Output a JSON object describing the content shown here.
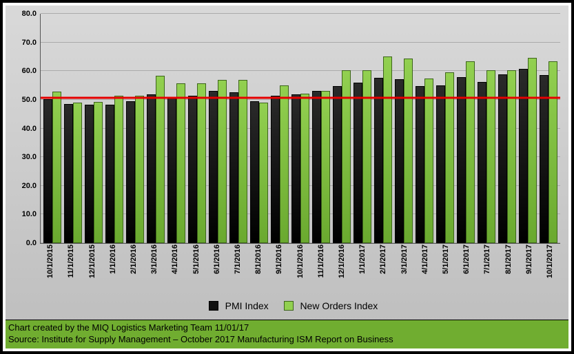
{
  "chart": {
    "type": "bar",
    "categories": [
      "10/1/2015",
      "11/1/2015",
      "12/1/2015",
      "1/1/2016",
      "2/1/2016",
      "3/1/2016",
      "4/1/2016",
      "5/1/2016",
      "6/1/2016",
      "7/1/2016",
      "8/1/2016",
      "9/1/2016",
      "10/1/2016",
      "11/1/2016",
      "12/1/2016",
      "1/1/2017",
      "2/1/2017",
      "3/1/2017",
      "4/1/2017",
      "5/1/2017",
      "6/1/2017",
      "7/1/2017",
      "8/1/2017",
      "9/1/2017",
      "10/1/2017"
    ],
    "series": [
      {
        "name": "PMI Index",
        "color": "#1a1a1a",
        "border": "#000000",
        "values": [
          50.1,
          48.6,
          48.2,
          48.2,
          49.5,
          51.8,
          50.8,
          51.3,
          53.2,
          52.6,
          49.4,
          51.5,
          51.9,
          53.2,
          54.7,
          56.0,
          57.7,
          57.2,
          54.8,
          54.9,
          57.8,
          56.3,
          58.8,
          60.8,
          58.7
        ]
      },
      {
        "name": "New Orders Index",
        "color": "#92d050",
        "border": "#3d641b",
        "values": [
          52.9,
          48.9,
          49.2,
          51.5,
          51.5,
          58.3,
          55.8,
          55.7,
          57.0,
          56.9,
          49.1,
          55.1,
          52.1,
          53.0,
          60.2,
          60.4,
          65.1,
          64.5,
          57.5,
          59.5,
          63.5,
          60.4,
          60.3,
          64.6,
          63.4
        ]
      }
    ],
    "ylim": [
      0,
      80
    ],
    "ytick_step": 10,
    "ytick_labels": [
      "0.0",
      "10.0",
      "20.0",
      "30.0",
      "40.0",
      "50.0",
      "60.0",
      "70.0",
      "80.0"
    ],
    "reference_line": {
      "value": 50,
      "color": "#e60000",
      "width": 3
    },
    "background_gradient": [
      "#d9d9d9",
      "#bfbfbf"
    ],
    "grid_color": "#aaaaaa",
    "font": {
      "family": "Arial",
      "axis_size": 11,
      "axis_weight": "bold",
      "legend_size": 14
    }
  },
  "legend": {
    "series1": "PMI Index",
    "series2": "New Orders Index"
  },
  "footer": {
    "line1": "Chart created by the MIQ Logistics Marketing Team 11/01/17",
    "line2": "Source: Institute for Supply Management – October 2017 Manufacturing ISM Report on Business",
    "background": "#70ad30"
  }
}
